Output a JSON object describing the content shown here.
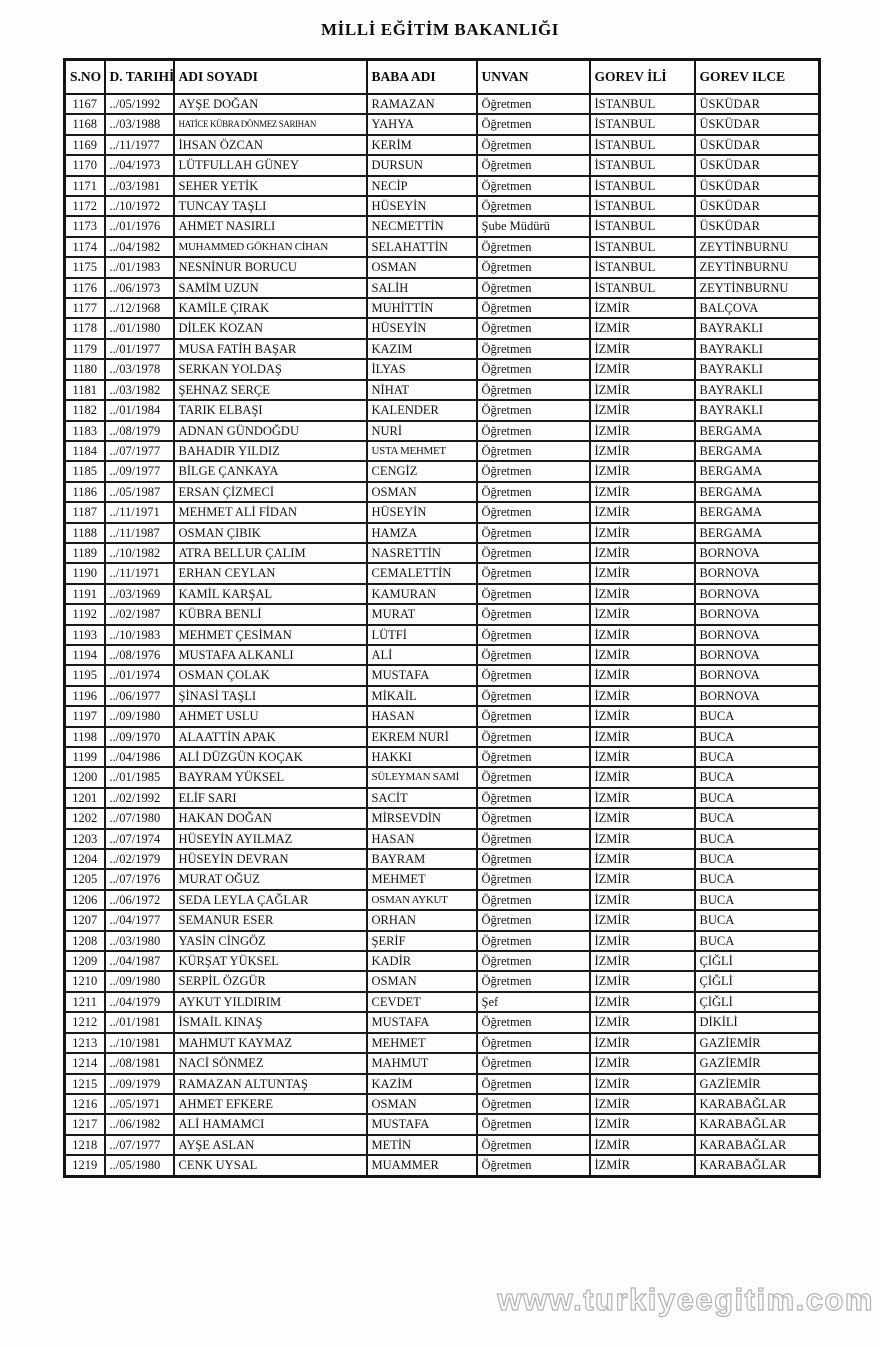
{
  "title": "MİLLİ EĞİTİM BAKANLIĞI",
  "watermark": "www.turkiyeegitim.com",
  "table": {
    "columns": [
      "S.NO",
      "D. TARIHİ",
      "ADI SOYADI",
      "BABA ADI",
      "UNVAN",
      "GOREV İLİ",
      "GOREV ILCE"
    ],
    "rows": [
      [
        "1167",
        "../05/1992",
        "AYŞE DOĞAN",
        "RAMAZAN",
        "Öğretmen",
        "İSTANBUL",
        "ÜSKÜDAR"
      ],
      [
        "1168",
        "../03/1988",
        "HATİCE KÜBRA DÖNMEZ SARIHAN",
        "YAHYA",
        "Öğretmen",
        "İSTANBUL",
        "ÜSKÜDAR"
      ],
      [
        "1169",
        "../11/1977",
        "İHSAN ÖZCAN",
        "KERİM",
        "Öğretmen",
        "İSTANBUL",
        "ÜSKÜDAR"
      ],
      [
        "1170",
        "../04/1973",
        "LÜTFULLAH GÜNEY",
        "DURSUN",
        "Öğretmen",
        "İSTANBUL",
        "ÜSKÜDAR"
      ],
      [
        "1171",
        "../03/1981",
        "SEHER YETİK",
        "NECİP",
        "Öğretmen",
        "İSTANBUL",
        "ÜSKÜDAR"
      ],
      [
        "1172",
        "../10/1972",
        "TUNCAY TAŞLI",
        "HÜSEYİN",
        "Öğretmen",
        "İSTANBUL",
        "ÜSKÜDAR"
      ],
      [
        "1173",
        "../01/1976",
        "AHMET NASIRLI",
        "NECMETTİN",
        "Şube Müdürü",
        "İSTANBUL",
        "ÜSKÜDAR"
      ],
      [
        "1174",
        "../04/1982",
        "MUHAMMED GÖKHAN CİHAN",
        "SELAHATTİN",
        "Öğretmen",
        "İSTANBUL",
        "ZEYTİNBURNU"
      ],
      [
        "1175",
        "../01/1983",
        "NESNİNUR BORUCU",
        "OSMAN",
        "Öğretmen",
        "İSTANBUL",
        "ZEYTİNBURNU"
      ],
      [
        "1176",
        "../06/1973",
        "SAMİM UZUN",
        "SALİH",
        "Öğretmen",
        "İSTANBUL",
        "ZEYTİNBURNU"
      ],
      [
        "1177",
        "../12/1968",
        "KAMİLE ÇIRAK",
        "MUHİTTİN",
        "Öğretmen",
        "İZMİR",
        "BALÇOVA"
      ],
      [
        "1178",
        "../01/1980",
        "DİLEK KOZAN",
        "HÜSEYİN",
        "Öğretmen",
        "İZMİR",
        "BAYRAKLI"
      ],
      [
        "1179",
        "../01/1977",
        "MUSA FATİH BAŞAR",
        "KAZIM",
        "Öğretmen",
        "İZMİR",
        "BAYRAKLI"
      ],
      [
        "1180",
        "../03/1978",
        "SERKAN YOLDAŞ",
        "İLYAS",
        "Öğretmen",
        "İZMİR",
        "BAYRAKLI"
      ],
      [
        "1181",
        "../03/1982",
        "ŞEHNAZ SERÇE",
        "NİHAT",
        "Öğretmen",
        "İZMİR",
        "BAYRAKLI"
      ],
      [
        "1182",
        "../01/1984",
        "TARIK ELBAŞI",
        "KALENDER",
        "Öğretmen",
        "İZMİR",
        "BAYRAKLI"
      ],
      [
        "1183",
        "../08/1979",
        "ADNAN GÜNDOĞDU",
        "NURİ",
        "Öğretmen",
        "İZMİR",
        "BERGAMA"
      ],
      [
        "1184",
        "../07/1977",
        "BAHADIR YILDIZ",
        "USTA MEHMET",
        "Öğretmen",
        "İZMİR",
        "BERGAMA"
      ],
      [
        "1185",
        "../09/1977",
        "BİLGE ÇANKAYA",
        "CENGİZ",
        "Öğretmen",
        "İZMİR",
        "BERGAMA"
      ],
      [
        "1186",
        "../05/1987",
        "ERSAN ÇİZMECİ",
        "OSMAN",
        "Öğretmen",
        "İZMİR",
        "BERGAMA"
      ],
      [
        "1187",
        "../11/1971",
        "MEHMET ALİ FİDAN",
        "HÜSEYİN",
        "Öğretmen",
        "İZMİR",
        "BERGAMA"
      ],
      [
        "1188",
        "../11/1987",
        "OSMAN ÇIBIK",
        "HAMZA",
        "Öğretmen",
        "İZMİR",
        "BERGAMA"
      ],
      [
        "1189",
        "../10/1982",
        "ATRA BELLUR ÇALIM",
        "NASRETTİN",
        "Öğretmen",
        "İZMİR",
        "BORNOVA"
      ],
      [
        "1190",
        "../11/1971",
        "ERHAN CEYLAN",
        "CEMALETTİN",
        "Öğretmen",
        "İZMİR",
        "BORNOVA"
      ],
      [
        "1191",
        "../03/1969",
        "KAMİL KARŞAL",
        "KAMURAN",
        "Öğretmen",
        "İZMİR",
        "BORNOVA"
      ],
      [
        "1192",
        "../02/1987",
        "KÜBRA BENLİ",
        "MURAT",
        "Öğretmen",
        "İZMİR",
        "BORNOVA"
      ],
      [
        "1193",
        "../10/1983",
        "MEHMET ÇESİMAN",
        "LÜTFİ",
        "Öğretmen",
        "İZMİR",
        "BORNOVA"
      ],
      [
        "1194",
        "../08/1976",
        "MUSTAFA ALKANLI",
        "ALİ",
        "Öğretmen",
        "İZMİR",
        "BORNOVA"
      ],
      [
        "1195",
        "../01/1974",
        "OSMAN ÇOLAK",
        "MUSTAFA",
        "Öğretmen",
        "İZMİR",
        "BORNOVA"
      ],
      [
        "1196",
        "../06/1977",
        "ŞİNASİ TAŞLI",
        "MİKAİL",
        "Öğretmen",
        "İZMİR",
        "BORNOVA"
      ],
      [
        "1197",
        "../09/1980",
        "AHMET USLU",
        "HASAN",
        "Öğretmen",
        "İZMİR",
        "BUCA"
      ],
      [
        "1198",
        "../09/1970",
        "ALAATTİN APAK",
        "EKREM NURİ",
        "Öğretmen",
        "İZMİR",
        "BUCA"
      ],
      [
        "1199",
        "../04/1986",
        "ALİ DÜZGÜN KOÇAK",
        "HAKKI",
        "Öğretmen",
        "İZMİR",
        "BUCA"
      ],
      [
        "1200",
        "../01/1985",
        "BAYRAM YÜKSEL",
        "SÜLEYMAN SAMİ",
        "Öğretmen",
        "İZMİR",
        "BUCA"
      ],
      [
        "1201",
        "../02/1992",
        "ELİF SARI",
        "SACİT",
        "Öğretmen",
        "İZMİR",
        "BUCA"
      ],
      [
        "1202",
        "../07/1980",
        "HAKAN DOĞAN",
        "MİRSEVDİN",
        "Öğretmen",
        "İZMİR",
        "BUCA"
      ],
      [
        "1203",
        "../07/1974",
        "HÜSEYİN AYILMAZ",
        "HASAN",
        "Öğretmen",
        "İZMİR",
        "BUCA"
      ],
      [
        "1204",
        "../02/1979",
        "HÜSEYİN DEVRAN",
        "BAYRAM",
        "Öğretmen",
        "İZMİR",
        "BUCA"
      ],
      [
        "1205",
        "../07/1976",
        "MURAT OĞUZ",
        "MEHMET",
        "Öğretmen",
        "İZMİR",
        "BUCA"
      ],
      [
        "1206",
        "../06/1972",
        "SEDA LEYLA ÇAĞLAR",
        "OSMAN AYKUT",
        "Öğretmen",
        "İZMİR",
        "BUCA"
      ],
      [
        "1207",
        "../04/1977",
        "SEMANUR ESER",
        "ORHAN",
        "Öğretmen",
        "İZMİR",
        "BUCA"
      ],
      [
        "1208",
        "../03/1980",
        "YASİN CİNGÖZ",
        "ŞERİF",
        "Öğretmen",
        "İZMİR",
        "BUCA"
      ],
      [
        "1209",
        "../04/1987",
        "KÜRŞAT YÜKSEL",
        "KADİR",
        "Öğretmen",
        "İZMİR",
        "ÇİĞLİ"
      ],
      [
        "1210",
        "../09/1980",
        "SERPİL ÖZGÜR",
        "OSMAN",
        "Öğretmen",
        "İZMİR",
        "ÇİĞLİ"
      ],
      [
        "1211",
        "../04/1979",
        "AYKUT YILDIRIM",
        "CEVDET",
        "Şef",
        "İZMİR",
        "ÇİĞLİ"
      ],
      [
        "1212",
        "../01/1981",
        "İSMAİL KINAŞ",
        "MUSTAFA",
        "Öğretmen",
        "İZMİR",
        "DİKİLİ"
      ],
      [
        "1213",
        "../10/1981",
        "MAHMUT KAYMAZ",
        "MEHMET",
        "Öğretmen",
        "İZMİR",
        "GAZİEMİR"
      ],
      [
        "1214",
        "../08/1981",
        "NACİ SÖNMEZ",
        "MAHMUT",
        "Öğretmen",
        "İZMİR",
        "GAZİEMİR"
      ],
      [
        "1215",
        "../09/1979",
        "RAMAZAN ALTUNTAŞ",
        "KAZİM",
        "Öğretmen",
        "İZMİR",
        "GAZİEMİR"
      ],
      [
        "1216",
        "../05/1971",
        "AHMET EFKERE",
        "OSMAN",
        "Öğretmen",
        "İZMİR",
        "KARABAĞLAR"
      ],
      [
        "1217",
        "../06/1982",
        "ALİ HAMAMCI",
        "MUSTAFA",
        "Öğretmen",
        "İZMİR",
        "KARABAĞLAR"
      ],
      [
        "1218",
        "../07/1977",
        "AYŞE ASLAN",
        "METİN",
        "Öğretmen",
        "İZMİR",
        "KARABAĞLAR"
      ],
      [
        "1219",
        "../05/1980",
        "CENK UYSAL",
        "MUAMMER",
        "Öğretmen",
        "İZMİR",
        "KARABAĞLAR"
      ]
    ]
  }
}
